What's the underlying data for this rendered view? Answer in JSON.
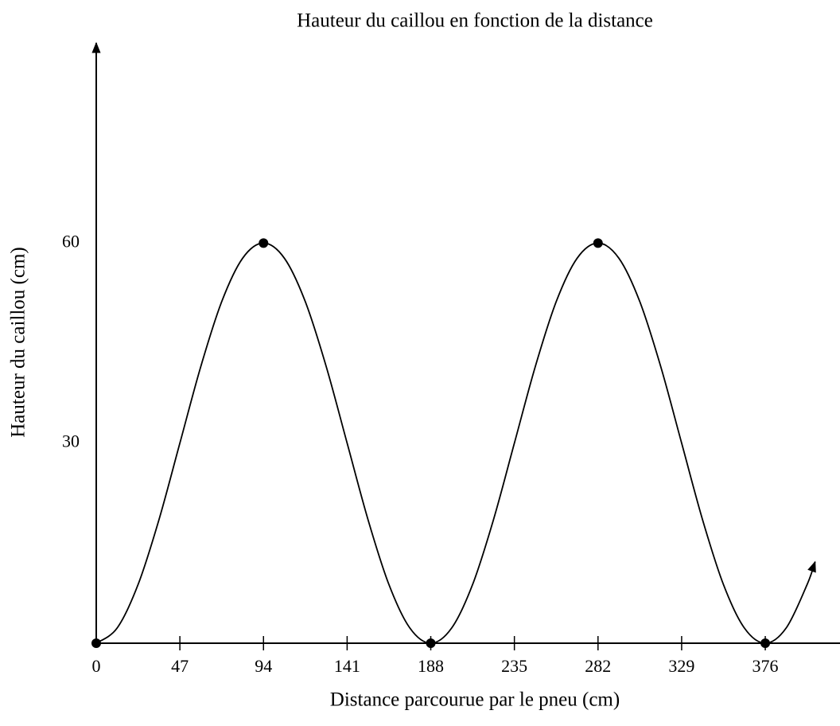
{
  "chart_data": {
    "type": "line",
    "title": "Hauteur du caillou en fonction de la distance",
    "x_label": "Distance parcourue par le pneu (cm)",
    "y_label": "Hauteur du caillou (cm)",
    "xlim": [
      0,
      418
    ],
    "ylim": [
      0,
      90
    ],
    "xticks": [
      0,
      47,
      94,
      141,
      188,
      235,
      282,
      329,
      376
    ],
    "yticks": [
      30,
      60
    ],
    "color": "#000000",
    "series": [
      {
        "x": [
          0,
          11.75,
          23.5,
          35.25,
          47,
          58.75,
          70.5,
          82.25,
          94,
          105.75,
          117.5,
          129.25,
          141,
          152.75,
          164.5,
          176.25,
          188,
          199.75,
          211.5,
          223.25,
          235,
          246.75,
          258.5,
          270.25,
          282,
          293.75,
          305.5,
          317.25,
          329,
          340.75,
          352.5,
          364.25,
          376,
          387.75,
          399.5,
          404
        ],
        "values": [
          0,
          2.28,
          8.79,
          18.52,
          30,
          41.48,
          51.21,
          57.72,
          60,
          57.72,
          51.21,
          41.48,
          30,
          18.52,
          8.79,
          2.28,
          0,
          2.28,
          8.79,
          18.52,
          30,
          41.48,
          51.21,
          57.72,
          60,
          57.72,
          51.21,
          41.48,
          30,
          18.52,
          8.79,
          2.28,
          0,
          2.28,
          8.79,
          12.2
        ]
      },
      {
        "x": [
          0,
          94,
          188,
          282,
          376
        ],
        "values": [
          0,
          60,
          0,
          60,
          0
        ],
        "marker": "dot"
      }
    ]
  }
}
